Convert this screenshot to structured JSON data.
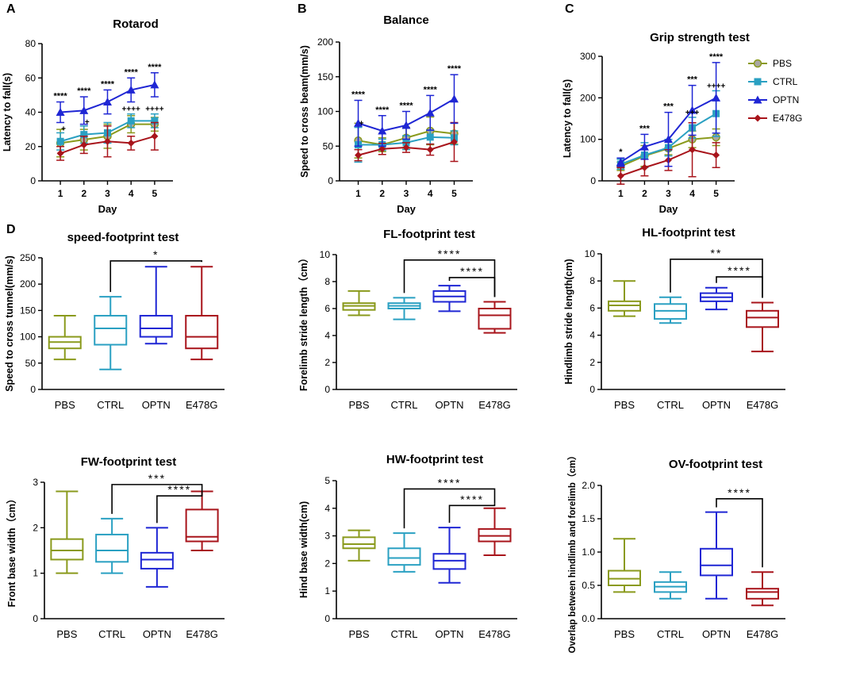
{
  "colors": {
    "PBS": "#8a9a1c",
    "CTRL": "#2aa0c2",
    "OPTN": "#1f26d4",
    "E478G": "#a8141b",
    "axis": "#000000"
  },
  "legend": {
    "items": [
      "PBS",
      "CTRL",
      "OPTN",
      "E478G"
    ],
    "icons": [
      "circle-marker-icon",
      "square-marker-icon",
      "triangle-marker-icon",
      "diamond-marker-icon"
    ],
    "placement": "right of panel C"
  },
  "chart_data": [
    {
      "id": "A",
      "panel_label": "A",
      "type": "line",
      "title": "Rotarod",
      "xlabel": "Day",
      "ylabel": "Latency to fall(s)",
      "categories": [
        "1",
        "2",
        "3",
        "4",
        "5"
      ],
      "ylim": [
        0,
        80
      ],
      "yticks": [
        "0",
        "20",
        "40",
        "60",
        "80"
      ],
      "series": [
        {
          "name": "PBS",
          "values": [
            22,
            24,
            26,
            33,
            33
          ],
          "err": [
            8,
            6,
            7,
            5,
            4
          ]
        },
        {
          "name": "CTRL",
          "values": [
            23,
            27,
            28,
            35,
            35
          ],
          "err": [
            5,
            5,
            6,
            4,
            4
          ]
        },
        {
          "name": "OPTN",
          "values": [
            40,
            41,
            46,
            53,
            56
          ],
          "err": [
            6,
            8,
            7,
            7,
            7
          ]
        },
        {
          "name": "E478G",
          "values": [
            16,
            21,
            23,
            22,
            26
          ],
          "err": [
            4,
            5,
            9,
            4,
            8
          ]
        }
      ],
      "top_annotations": [
        "****",
        "****",
        "****",
        "****",
        "****"
      ],
      "mid_annotations": [
        "",
        "",
        "",
        "++++",
        "++++"
      ],
      "low_annotations": [
        "+",
        "+",
        "",
        "",
        ""
      ]
    },
    {
      "id": "B",
      "panel_label": "B",
      "type": "line",
      "title": "Balance",
      "xlabel": "Day",
      "ylabel": "Speed to cross beam(mm/s)",
      "categories": [
        "1",
        "2",
        "3",
        "4",
        "5"
      ],
      "ylim": [
        0,
        200
      ],
      "yticks": [
        "0",
        "50",
        "100",
        "150",
        "200"
      ],
      "series": [
        {
          "name": "PBS",
          "values": [
            58,
            52,
            62,
            72,
            68
          ],
          "err": [
            25,
            10,
            15,
            20,
            15
          ]
        },
        {
          "name": "CTRL",
          "values": [
            52,
            52,
            55,
            63,
            62
          ],
          "err": [
            25,
            8,
            10,
            10,
            10
          ]
        },
        {
          "name": "OPTN",
          "values": [
            83,
            72,
            80,
            98,
            118
          ],
          "err": [
            33,
            22,
            20,
            25,
            35
          ]
        },
        {
          "name": "E478G",
          "values": [
            37,
            46,
            48,
            45,
            56
          ],
          "err": [
            8,
            8,
            7,
            8,
            28
          ]
        }
      ],
      "top_annotations": [
        "****",
        "****",
        "****",
        "****",
        "****"
      ],
      "mid_annotations": [
        "",
        "",
        "",
        "",
        ""
      ],
      "low_annotations": [
        "+",
        "",
        "",
        "",
        ""
      ]
    },
    {
      "id": "C",
      "panel_label": "C",
      "type": "line",
      "title": "Grip strength test",
      "xlabel": "Day",
      "ylabel": "Latency to fall(s)",
      "categories": [
        "1",
        "2",
        "3",
        "4",
        "5"
      ],
      "ylim": [
        0,
        300
      ],
      "yticks": [
        "0",
        "100",
        "200",
        "300"
      ],
      "series": [
        {
          "name": "PBS",
          "values": [
            35,
            60,
            78,
            100,
            105
          ],
          "err": [
            10,
            25,
            15,
            20,
            20
          ]
        },
        {
          "name": "CTRL",
          "values": [
            40,
            62,
            80,
            128,
            162
          ],
          "err": [
            12,
            30,
            20,
            25,
            55
          ]
        },
        {
          "name": "OPTN",
          "values": [
            45,
            82,
            100,
            170,
            200
          ],
          "err": [
            10,
            30,
            65,
            60,
            85
          ]
        },
        {
          "name": "E478G",
          "values": [
            12,
            32,
            50,
            75,
            62
          ],
          "err": [
            20,
            20,
            25,
            65,
            30
          ]
        }
      ],
      "top_annotations": [
        "*",
        "***",
        "***",
        "***",
        "****"
      ],
      "mid_annotations": [
        "",
        "",
        "",
        "+++",
        "++++"
      ],
      "low_annotations": [
        "",
        "",
        "",
        "",
        ""
      ]
    },
    {
      "id": "D1",
      "panel_label": "D",
      "type": "box",
      "title": "speed-footprint test",
      "xlabel": "",
      "ylabel": "Speed to cross tunnel(mm/s)",
      "categories": [
        "PBS",
        "CTRL",
        "OPTN",
        "E478G"
      ],
      "ylim": [
        0,
        250
      ],
      "yticks": [
        "0",
        "50",
        "100",
        "150",
        "200",
        "250"
      ],
      "boxes": [
        {
          "min": 57,
          "q1": 78,
          "median": 90,
          "q3": 100,
          "max": 140
        },
        {
          "min": 38,
          "q1": 85,
          "median": 116,
          "q3": 140,
          "max": 176
        },
        {
          "min": 87,
          "q1": 100,
          "median": 116,
          "q3": 140,
          "max": 233
        },
        {
          "min": 57,
          "q1": 78,
          "median": 100,
          "q3": 140,
          "max": 233
        }
      ],
      "brackets": [
        {
          "from": "CTRL",
          "to": "E478G",
          "label": "*",
          "y": 244
        }
      ]
    },
    {
      "id": "D2",
      "panel_label": "",
      "type": "box",
      "title": "FL-footprint test",
      "xlabel": "",
      "ylabel": "Forelimb stride length（cm）",
      "categories": [
        "PBS",
        "CTRL",
        "OPTN",
        "E478G"
      ],
      "ylim": [
        0,
        10
      ],
      "yticks": [
        "0",
        "2",
        "4",
        "6",
        "8",
        "10"
      ],
      "boxes": [
        {
          "min": 5.5,
          "q1": 5.9,
          "median": 6.2,
          "q3": 6.4,
          "max": 7.3
        },
        {
          "min": 5.2,
          "q1": 6.0,
          "median": 6.2,
          "q3": 6.4,
          "max": 6.8
        },
        {
          "min": 5.8,
          "q1": 6.5,
          "median": 6.9,
          "q3": 7.3,
          "max": 7.7
        },
        {
          "min": 4.2,
          "q1": 4.5,
          "median": 5.5,
          "q3": 6.0,
          "max": 6.5
        }
      ],
      "brackets": [
        {
          "from": "CTRL",
          "to": "E478G",
          "label": "****",
          "y": 9.6
        },
        {
          "from": "OPTN",
          "to": "E478G",
          "label": "****",
          "y": 8.3
        }
      ]
    },
    {
      "id": "D3",
      "panel_label": "",
      "type": "box",
      "title": "HL-footprint test",
      "xlabel": "",
      "ylabel": "Hindlimb stride length(cm)",
      "categories": [
        "PBS",
        "CTRL",
        "OPTN",
        "E478G"
      ],
      "ylim": [
        0,
        10
      ],
      "yticks": [
        "0",
        "2",
        "4",
        "6",
        "8",
        "10"
      ],
      "boxes": [
        {
          "min": 5.4,
          "q1": 5.8,
          "median": 6.2,
          "q3": 6.5,
          "max": 8.0
        },
        {
          "min": 4.9,
          "q1": 5.2,
          "median": 5.8,
          "q3": 6.3,
          "max": 6.8
        },
        {
          "min": 5.9,
          "q1": 6.5,
          "median": 6.8,
          "q3": 7.1,
          "max": 7.5
        },
        {
          "min": 2.8,
          "q1": 4.6,
          "median": 5.3,
          "q3": 5.8,
          "max": 6.4
        }
      ],
      "brackets": [
        {
          "from": "CTRL",
          "to": "E478G",
          "label": "**",
          "y": 9.6
        },
        {
          "from": "OPTN",
          "to": "E478G",
          "label": "****",
          "y": 8.3
        }
      ]
    },
    {
      "id": "D4",
      "panel_label": "",
      "type": "box",
      "title": "FW-footprint test",
      "xlabel": "",
      "ylabel": "Front base width（cm）",
      "categories": [
        "PBS",
        "CTRL",
        "OPTN",
        "E478G"
      ],
      "ylim": [
        0,
        3
      ],
      "yticks": [
        "0",
        "1",
        "2",
        "3"
      ],
      "boxes": [
        {
          "min": 1.0,
          "q1": 1.3,
          "median": 1.5,
          "q3": 1.75,
          "max": 2.8
        },
        {
          "min": 1.0,
          "q1": 1.25,
          "median": 1.5,
          "q3": 1.85,
          "max": 2.2
        },
        {
          "min": 0.7,
          "q1": 1.1,
          "median": 1.3,
          "q3": 1.45,
          "max": 2.0
        },
        {
          "min": 1.5,
          "q1": 1.7,
          "median": 1.8,
          "q3": 2.4,
          "max": 2.8
        }
      ],
      "brackets": [
        {
          "from": "CTRL",
          "to": "E478G",
          "label": "***",
          "y": 2.95
        },
        {
          "from": "OPTN",
          "to": "E478G",
          "label": "****",
          "y": 2.7
        }
      ]
    },
    {
      "id": "D5",
      "panel_label": "",
      "type": "box",
      "title": "HW-footprint test",
      "xlabel": "",
      "ylabel": "Hind base width(cm)",
      "categories": [
        "PBS",
        "CTRL",
        "OPTN",
        "E478G"
      ],
      "ylim": [
        0,
        5
      ],
      "yticks": [
        "0",
        "1",
        "2",
        "3",
        "4",
        "5"
      ],
      "boxes": [
        {
          "min": 2.1,
          "q1": 2.55,
          "median": 2.7,
          "q3": 2.95,
          "max": 3.2
        },
        {
          "min": 1.7,
          "q1": 1.95,
          "median": 2.2,
          "q3": 2.55,
          "max": 3.1
        },
        {
          "min": 1.3,
          "q1": 1.8,
          "median": 2.1,
          "q3": 2.35,
          "max": 3.3
        },
        {
          "min": 2.3,
          "q1": 2.8,
          "median": 3.0,
          "q3": 3.25,
          "max": 4.0
        }
      ],
      "brackets": [
        {
          "from": "CTRL",
          "to": "E478G",
          "label": "****",
          "y": 4.7
        },
        {
          "from": "OPTN",
          "to": "E478G",
          "label": "****",
          "y": 4.1
        }
      ]
    },
    {
      "id": "D6",
      "panel_label": "",
      "type": "box",
      "title": "OV-footprint test",
      "xlabel": "",
      "ylabel": "Overlap between hindlimb and forelimb（cm）",
      "categories": [
        "PBS",
        "CTRL",
        "OPTN",
        "E478G"
      ],
      "ylim": [
        0,
        2
      ],
      "yticks": [
        "0.0",
        "0.5",
        "1.0",
        "1.5",
        "2.0"
      ],
      "boxes": [
        {
          "min": 0.4,
          "q1": 0.5,
          "median": 0.6,
          "q3": 0.72,
          "max": 1.2
        },
        {
          "min": 0.3,
          "q1": 0.4,
          "median": 0.48,
          "q3": 0.55,
          "max": 0.7
        },
        {
          "min": 0.3,
          "q1": 0.65,
          "median": 0.8,
          "q3": 1.05,
          "max": 1.6
        },
        {
          "min": 0.2,
          "q1": 0.3,
          "median": 0.4,
          "q3": 0.45,
          "max": 0.7
        }
      ],
      "brackets": [
        {
          "from": "OPTN",
          "to": "E478G",
          "label": "****",
          "y": 1.8
        }
      ]
    }
  ]
}
